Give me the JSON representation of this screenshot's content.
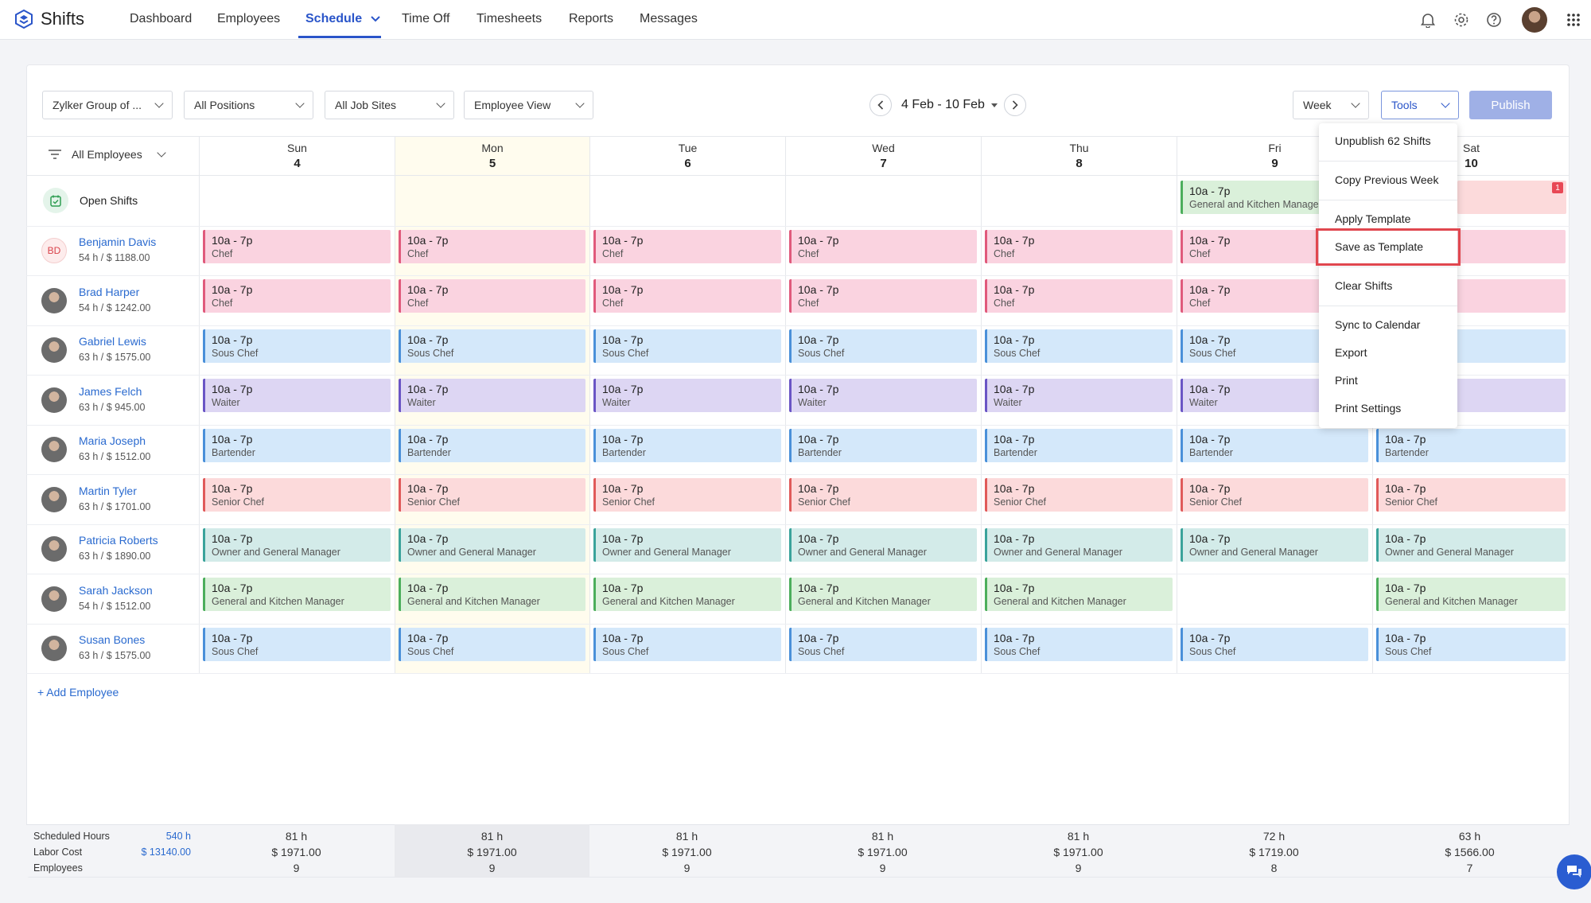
{
  "app": {
    "name": "Shifts"
  },
  "nav": [
    {
      "label": "Dashboard",
      "active": false
    },
    {
      "label": "Employees",
      "active": false
    },
    {
      "label": "Schedule",
      "active": true
    },
    {
      "label": "Time Off",
      "active": false
    },
    {
      "label": "Timesheets",
      "active": false
    },
    {
      "label": "Reports",
      "active": false
    },
    {
      "label": "Messages",
      "active": false
    }
  ],
  "toolbar": {
    "company": "Zylker Group of ...",
    "positions": "All Positions",
    "job_sites": "All Job Sites",
    "view": "Employee View",
    "date_range": "4 Feb - 10 Feb",
    "period": "Week",
    "tools": "Tools",
    "publish": "Publish"
  },
  "grid": {
    "employee_filter": "All Employees",
    "open_shifts_label": "Open Shifts",
    "open_shifts_badge": "1",
    "days": [
      {
        "name": "Sun",
        "date": "4"
      },
      {
        "name": "Mon",
        "date": "5"
      },
      {
        "name": "Tue",
        "date": "6"
      },
      {
        "name": "Wed",
        "date": "7"
      },
      {
        "name": "Thu",
        "date": "8"
      },
      {
        "name": "Fri",
        "date": "9"
      },
      {
        "name": "Sat",
        "date": "10"
      }
    ],
    "open_shift": {
      "time": "10a - 7p",
      "role": "General and Kitchen Manager"
    },
    "shift_time": "10a - 7p",
    "employees": [
      {
        "initials": "BD",
        "name": "Benjamin Davis",
        "meta": "54 h / $ 1188.00",
        "role": "Chef"
      },
      {
        "initials": "",
        "name": "Brad Harper",
        "meta": "54 h / $ 1242.00",
        "role": "Chef"
      },
      {
        "initials": "",
        "name": "Gabriel Lewis",
        "meta": "63 h / $ 1575.00",
        "role": "Sous Chef"
      },
      {
        "initials": "",
        "name": "James Felch",
        "meta": "63 h / $ 945.00",
        "role": "Waiter"
      },
      {
        "initials": "",
        "name": "Maria Joseph",
        "meta": "63 h / $ 1512.00",
        "role": "Bartender"
      },
      {
        "initials": "",
        "name": "Martin Tyler",
        "meta": "63 h / $ 1701.00",
        "role": "Senior Chef"
      },
      {
        "initials": "",
        "name": "Patricia Roberts",
        "meta": "63 h / $ 1890.00",
        "role": "Owner and General Manager"
      },
      {
        "initials": "",
        "name": "Sarah Jackson",
        "meta": "54 h / $ 1512.00",
        "role": "General and Kitchen Manager"
      },
      {
        "initials": "",
        "name": "Susan Bones",
        "meta": "63 h / $ 1575.00",
        "role": "Sous Chef"
      }
    ],
    "add_employee": "+ Add Employee"
  },
  "summary": {
    "labels": [
      "Scheduled Hours",
      "Labor Cost",
      "Employees"
    ],
    "totals": [
      "540 h",
      "$ 13140.00"
    ],
    "days": [
      {
        "hours": "81 h",
        "cost": "$ 1971.00",
        "employees": "9"
      },
      {
        "hours": "81 h",
        "cost": "$ 1971.00",
        "employees": "9"
      },
      {
        "hours": "81 h",
        "cost": "$ 1971.00",
        "employees": "9"
      },
      {
        "hours": "81 h",
        "cost": "$ 1971.00",
        "employees": "9"
      },
      {
        "hours": "81 h",
        "cost": "$ 1971.00",
        "employees": "9"
      },
      {
        "hours": "72 h",
        "cost": "$ 1719.00",
        "employees": "8"
      },
      {
        "hours": "63 h",
        "cost": "$ 1566.00",
        "employees": "7"
      }
    ]
  },
  "tools_menu": [
    "Unpublish 62 Shifts",
    "Copy Previous Week",
    "Apply Template",
    "Save as Template",
    "Clear Shifts",
    "Sync to Calendar",
    "Export",
    "Print",
    "Print Settings"
  ],
  "icons": {
    "notifications": "bell-icon",
    "settings": "gear-icon",
    "help": "help-icon",
    "apps": "grid-icon",
    "chat": "chat-icon"
  },
  "colors": {
    "accent": "#2a55c9",
    "highlight": "#e0474f",
    "publish": "#9fb0e6"
  }
}
